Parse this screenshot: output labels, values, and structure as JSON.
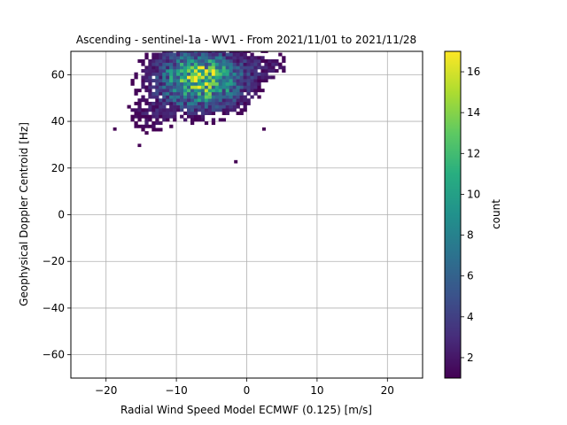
{
  "chart_data": {
    "type": "heatmap",
    "title": "Ascending - sentinel-1a - WV1 - From 2021/11/01 to 2021/11/28",
    "xlabel": "Radial Wind Speed Model ECMWF (0.125) [m/s]",
    "ylabel": "Geophysical Doppler Centroid [Hz]",
    "xlim": [
      -25,
      25
    ],
    "ylim": [
      -70,
      70
    ],
    "xticks": [
      -20,
      -10,
      0,
      10,
      20
    ],
    "xtick_labels": [
      "−20",
      "−10",
      "0",
      "10",
      "20"
    ],
    "yticks": [
      -60,
      -40,
      -20,
      0,
      20,
      40,
      60
    ],
    "ytick_labels": [
      "−60",
      "−40",
      "−20",
      "0",
      "20",
      "40",
      "60"
    ],
    "grid": true,
    "bin_size": {
      "x": 0.5,
      "y": 1.4
    },
    "colormap": "viridis",
    "colorbar": {
      "label": "count",
      "range": [
        1,
        17
      ],
      "ticks": [
        2,
        4,
        6,
        8,
        10,
        12,
        14,
        16
      ],
      "tick_labels": [
        "2",
        "4",
        "6",
        "8",
        "10",
        "12",
        "14",
        "16"
      ]
    },
    "clusters": [
      {
        "name": "core",
        "x_center": -6.5,
        "y_center": 58,
        "x_spread": 4.0,
        "y_spread": 8.0,
        "peak_count": 17
      },
      {
        "name": "upper-right tail",
        "x_center": 3,
        "y_center": 64,
        "x_spread": 2.5,
        "y_spread": 4.0,
        "peak_count": 2
      },
      {
        "name": "lower-left tail",
        "x_center": -14,
        "y_center": 42,
        "x_spread": 2.5,
        "y_spread": 5.0,
        "peak_count": 2
      }
    ],
    "isolated_points": [
      [
        -1.8,
        22
      ],
      [
        2.2,
        36
      ],
      [
        -19,
        36
      ],
      [
        -15.5,
        29
      ]
    ]
  }
}
